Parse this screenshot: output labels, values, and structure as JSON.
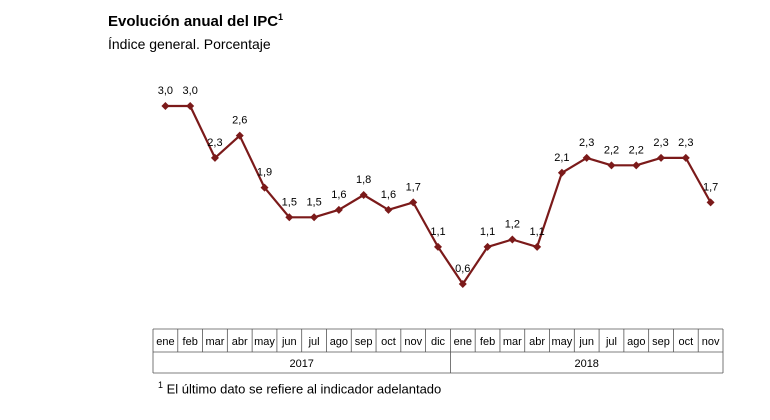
{
  "chart_data": {
    "type": "line",
    "title": "Evolución anual del IPC",
    "title_sup": "1",
    "subtitle": "Índice general. Porcentaje",
    "x": [
      "ene",
      "feb",
      "mar",
      "abr",
      "may",
      "jun",
      "jul",
      "ago",
      "sep",
      "oct",
      "nov",
      "dic",
      "ene",
      "feb",
      "mar",
      "abr",
      "may",
      "jun",
      "jul",
      "ago",
      "sep",
      "oct",
      "nov"
    ],
    "years": [
      {
        "label": "2017",
        "months": 12
      },
      {
        "label": "2018",
        "months": 11
      }
    ],
    "series": [
      {
        "values": [
          3.0,
          3.0,
          2.3,
          2.6,
          1.9,
          1.5,
          1.5,
          1.6,
          1.8,
          1.6,
          1.7,
          1.1,
          0.6,
          1.1,
          1.2,
          1.1,
          2.1,
          2.3,
          2.2,
          2.2,
          2.3,
          2.3,
          1.7
        ],
        "labels": [
          "3,0",
          "3,0",
          "2,3",
          "2,6",
          "1,9",
          "1,5",
          "1,5",
          "1,6",
          "1,8",
          "1,6",
          "1,7",
          "1,1",
          "0,6",
          "1,1",
          "1,2",
          "1,1",
          "2,1",
          "2,3",
          "2,2",
          "2,2",
          "2,3",
          "2,3",
          "1,7"
        ],
        "color": "#7b1a1a"
      }
    ],
    "grid": false,
    "legend": "none",
    "footnote_sup": "1",
    "footnote": "El último dato se refiere al indicador adelantado"
  }
}
